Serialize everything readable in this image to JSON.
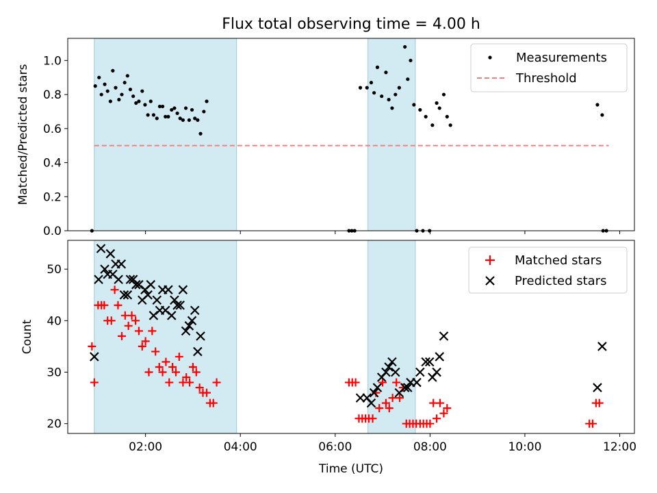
{
  "chart_data": [
    {
      "type": "scatter",
      "title": "Flux total observing time = 4.00 h",
      "xlabel": "",
      "ylabel": "Matched/Predicted stars",
      "xlim": [
        0.36,
        12.31
      ],
      "ylim": [
        0,
        1.13
      ],
      "yticks": [
        "0.0",
        "0.2",
        "0.4",
        "0.6",
        "0.8",
        "1.0"
      ],
      "shaded_regions": [
        [
          0.92,
          3.92
        ],
        [
          6.69,
          7.69
        ]
      ],
      "threshold": {
        "name": "Threshold",
        "value": 0.5,
        "x": [
          0.92,
          11.77
        ],
        "color": "#f08080"
      },
      "legend_position": "top-right",
      "series": [
        {
          "name": "Measurements",
          "marker": "dot",
          "color": "#000000",
          "points": [
            [
              0.87,
              0.0
            ],
            [
              0.94,
              0.85
            ],
            [
              1.02,
              0.9
            ],
            [
              1.07,
              0.8
            ],
            [
              1.14,
              0.86
            ],
            [
              1.2,
              0.82
            ],
            [
              1.26,
              0.76
            ],
            [
              1.31,
              0.94
            ],
            [
              1.37,
              0.84
            ],
            [
              1.44,
              0.77
            ],
            [
              1.5,
              0.8
            ],
            [
              1.56,
              0.87
            ],
            [
              1.62,
              0.91
            ],
            [
              1.68,
              0.83
            ],
            [
              1.74,
              0.79
            ],
            [
              1.8,
              0.75
            ],
            [
              1.86,
              0.76
            ],
            [
              1.93,
              0.82
            ],
            [
              1.99,
              0.74
            ],
            [
              2.05,
              0.68
            ],
            [
              2.11,
              0.76
            ],
            [
              2.17,
              0.68
            ],
            [
              2.24,
              0.66
            ],
            [
              2.3,
              0.73
            ],
            [
              2.36,
              0.73
            ],
            [
              2.42,
              0.67
            ],
            [
              2.48,
              0.67
            ],
            [
              2.55,
              0.71
            ],
            [
              2.61,
              0.72
            ],
            [
              2.67,
              0.69
            ],
            [
              2.73,
              0.66
            ],
            [
              2.79,
              0.65
            ],
            [
              2.85,
              0.72
            ],
            [
              2.92,
              0.65
            ],
            [
              2.98,
              0.71
            ],
            [
              3.04,
              0.66
            ],
            [
              3.1,
              0.65
            ],
            [
              3.16,
              0.57
            ],
            [
              3.23,
              0.7
            ],
            [
              3.29,
              0.76
            ],
            [
              6.29,
              0.0
            ],
            [
              6.35,
              0.0
            ],
            [
              6.41,
              0.0
            ],
            [
              6.53,
              0.84
            ],
            [
              6.67,
              0.84
            ],
            [
              6.76,
              0.87
            ],
            [
              6.82,
              0.81
            ],
            [
              6.89,
              0.96
            ],
            [
              6.98,
              0.79
            ],
            [
              7.07,
              0.93
            ],
            [
              7.13,
              0.77
            ],
            [
              7.2,
              0.72
            ],
            [
              7.27,
              0.8
            ],
            [
              7.35,
              0.84
            ],
            [
              7.47,
              1.08
            ],
            [
              7.53,
              0.89
            ],
            [
              7.59,
              1.0
            ],
            [
              7.66,
              0.74
            ],
            [
              7.72,
              0.0
            ],
            [
              7.79,
              0.71
            ],
            [
              7.85,
              0.0
            ],
            [
              7.91,
              0.67
            ],
            [
              7.99,
              0.0
            ],
            [
              8.05,
              0.62
            ],
            [
              8.14,
              0.75
            ],
            [
              8.2,
              0.72
            ],
            [
              8.29,
              0.8
            ],
            [
              8.36,
              0.67
            ],
            [
              8.43,
              0.62
            ],
            [
              11.53,
              0.74
            ],
            [
              11.63,
              0.68
            ],
            [
              11.65,
              0.0
            ],
            [
              11.72,
              0.0
            ]
          ]
        }
      ]
    },
    {
      "type": "scatter",
      "title": "",
      "xlabel": "Time (UTC)",
      "ylabel": "Count",
      "xlim": [
        0.36,
        12.31
      ],
      "ylim": [
        18.1,
        55.6
      ],
      "yticks": [
        "20",
        "30",
        "40",
        "50"
      ],
      "xticks": [
        {
          "value": 2,
          "label": "02:00"
        },
        {
          "value": 4,
          "label": "04:00"
        },
        {
          "value": 6,
          "label": "06:00"
        },
        {
          "value": 8,
          "label": "08:00"
        },
        {
          "value": 10,
          "label": "10:00"
        },
        {
          "value": 12,
          "label": "12:00"
        }
      ],
      "shaded_regions": [
        [
          0.92,
          3.92
        ],
        [
          6.69,
          7.69
        ]
      ],
      "legend_position": "top-right",
      "series": [
        {
          "name": "Matched stars",
          "marker": "plus",
          "color": "#ff0000",
          "points": [
            [
              0.87,
              35
            ],
            [
              0.92,
              28
            ],
            [
              1.0,
              43
            ],
            [
              1.07,
              43
            ],
            [
              1.13,
              43
            ],
            [
              1.2,
              40
            ],
            [
              1.28,
              40
            ],
            [
              1.35,
              46
            ],
            [
              1.42,
              43
            ],
            [
              1.5,
              37
            ],
            [
              1.57,
              41
            ],
            [
              1.64,
              39
            ],
            [
              1.71,
              41
            ],
            [
              1.79,
              40
            ],
            [
              1.86,
              38
            ],
            [
              1.93,
              35
            ],
            [
              2.0,
              36
            ],
            [
              2.07,
              30
            ],
            [
              2.14,
              38
            ],
            [
              2.21,
              34
            ],
            [
              2.29,
              31
            ],
            [
              2.36,
              30
            ],
            [
              2.43,
              32
            ],
            [
              2.5,
              28
            ],
            [
              2.57,
              31
            ],
            [
              2.64,
              30
            ],
            [
              2.71,
              33
            ],
            [
              2.79,
              28
            ],
            [
              2.86,
              29
            ],
            [
              2.93,
              28
            ],
            [
              3.0,
              31
            ],
            [
              3.07,
              30
            ],
            [
              3.14,
              27
            ],
            [
              3.21,
              26
            ],
            [
              3.29,
              26
            ],
            [
              3.36,
              24
            ],
            [
              3.43,
              24
            ],
            [
              3.5,
              28
            ],
            [
              6.29,
              28
            ],
            [
              6.36,
              28
            ],
            [
              6.43,
              28
            ],
            [
              6.5,
              21
            ],
            [
              6.57,
              21
            ],
            [
              6.64,
              21
            ],
            [
              6.71,
              21
            ],
            [
              6.79,
              21
            ],
            [
              6.86,
              26
            ],
            [
              6.93,
              23
            ],
            [
              7.0,
              28
            ],
            [
              7.07,
              24
            ],
            [
              7.14,
              23
            ],
            [
              7.21,
              25
            ],
            [
              7.29,
              28
            ],
            [
              7.36,
              25
            ],
            [
              7.43,
              27
            ],
            [
              7.5,
              20
            ],
            [
              7.57,
              20
            ],
            [
              7.64,
              20
            ],
            [
              7.71,
              20
            ],
            [
              7.79,
              20
            ],
            [
              7.86,
              20
            ],
            [
              7.93,
              20
            ],
            [
              8.0,
              20
            ],
            [
              8.07,
              24
            ],
            [
              8.14,
              21
            ],
            [
              8.21,
              24
            ],
            [
              8.29,
              22
            ],
            [
              8.36,
              23
            ],
            [
              11.36,
              20
            ],
            [
              11.43,
              20
            ],
            [
              11.5,
              24
            ],
            [
              11.57,
              24
            ]
          ]
        },
        {
          "name": "Predicted stars",
          "marker": "x",
          "color": "#000000",
          "points": [
            [
              0.92,
              33
            ],
            [
              1.01,
              48
            ],
            [
              1.06,
              54
            ],
            [
              1.14,
              50
            ],
            [
              1.2,
              49
            ],
            [
              1.26,
              53
            ],
            [
              1.31,
              49
            ],
            [
              1.37,
              51
            ],
            [
              1.43,
              48
            ],
            [
              1.49,
              51
            ],
            [
              1.55,
              45
            ],
            [
              1.62,
              45
            ],
            [
              1.68,
              48
            ],
            [
              1.74,
              48
            ],
            [
              1.8,
              47
            ],
            [
              1.86,
              47
            ],
            [
              1.93,
              44
            ],
            [
              1.99,
              46
            ],
            [
              2.05,
              45
            ],
            [
              2.11,
              47
            ],
            [
              2.17,
              41
            ],
            [
              2.24,
              44
            ],
            [
              2.3,
              42
            ],
            [
              2.36,
              46
            ],
            [
              2.42,
              42
            ],
            [
              2.48,
              46
            ],
            [
              2.55,
              41
            ],
            [
              2.61,
              44
            ],
            [
              2.67,
              43
            ],
            [
              2.73,
              43
            ],
            [
              2.79,
              46
            ],
            [
              2.85,
              38
            ],
            [
              2.92,
              39
            ],
            [
              2.98,
              40
            ],
            [
              3.04,
              42
            ],
            [
              3.1,
              34
            ],
            [
              3.16,
              37
            ],
            [
              6.53,
              25
            ],
            [
              6.67,
              25
            ],
            [
              6.76,
              24
            ],
            [
              6.82,
              26
            ],
            [
              6.89,
              27
            ],
            [
              6.98,
              29
            ],
            [
              7.07,
              30
            ],
            [
              7.13,
              31
            ],
            [
              7.2,
              32
            ],
            [
              7.27,
              30
            ],
            [
              7.35,
              26
            ],
            [
              7.47,
              27
            ],
            [
              7.53,
              27
            ],
            [
              7.59,
              28
            ],
            [
              7.72,
              28
            ],
            [
              7.79,
              30
            ],
            [
              7.91,
              32
            ],
            [
              7.99,
              32
            ],
            [
              8.05,
              29
            ],
            [
              8.14,
              30
            ],
            [
              8.2,
              33
            ],
            [
              8.29,
              37
            ],
            [
              11.53,
              27
            ],
            [
              11.63,
              35
            ]
          ]
        }
      ]
    }
  ]
}
